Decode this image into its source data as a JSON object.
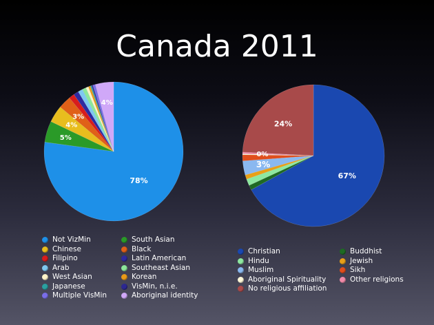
{
  "slide": {
    "title": "Canada 2011"
  },
  "chart_data": [
    {
      "type": "pie",
      "title": "",
      "slices": [
        {
          "label": "Not VizMin",
          "value": 78,
          "color": "#1e90e8",
          "text": "78%"
        },
        {
          "label": "South Asian",
          "value": 5,
          "color": "#2a9a28",
          "text": "5%"
        },
        {
          "label": "Chinese",
          "value": 4,
          "color": "#e8bd1e",
          "text": "4%"
        },
        {
          "label": "Black",
          "value": 3,
          "color": "#e06018",
          "text": "3%"
        },
        {
          "label": "Filipino",
          "value": 1.3,
          "color": "#d81c1c",
          "text": ""
        },
        {
          "label": "Latin American",
          "value": 1.2,
          "color": "#2e2aa0",
          "text": ""
        },
        {
          "label": "Arab",
          "value": 1.1,
          "color": "#7ec8f0",
          "text": ""
        },
        {
          "label": "Southeast Asian",
          "value": 0.9,
          "color": "#8ce89a",
          "text": ""
        },
        {
          "label": "West Asian",
          "value": 0.6,
          "color": "#fff4c8",
          "text": ""
        },
        {
          "label": "Korean",
          "value": 0.5,
          "color": "#e89a18",
          "text": ""
        },
        {
          "label": "Japanese",
          "value": 0.3,
          "color": "#2aa0a0",
          "text": ""
        },
        {
          "label": "VisMin, n.i.e.",
          "value": 0.3,
          "color": "#2c2890",
          "text": ""
        },
        {
          "label": "Multiple VisMin",
          "value": 0.6,
          "color": "#7a6ee8",
          "text": ""
        },
        {
          "label": "Aboriginal identity",
          "value": 4.3,
          "color": "#d0a8f8",
          "text": "4%"
        }
      ]
    },
    {
      "type": "pie",
      "title": "",
      "slices": [
        {
          "label": "Christian",
          "value": 67,
          "color": "#1a48b0",
          "text": "67%"
        },
        {
          "label": "Buddhist",
          "value": 1.1,
          "color": "#1e6a24",
          "text": ""
        },
        {
          "label": "Hindu",
          "value": 1.5,
          "color": "#8ee8a0",
          "text": ""
        },
        {
          "label": "Jewish",
          "value": 1.0,
          "color": "#e8a018",
          "text": ""
        },
        {
          "label": "Muslim",
          "value": 3.2,
          "color": "#8ab8f0",
          "text": "3%"
        },
        {
          "label": "Sikh",
          "value": 1.4,
          "color": "#e04e1c",
          "text": ""
        },
        {
          "label": "Aboriginal Spirituality",
          "value": 0.2,
          "color": "#fff8d8",
          "text": ""
        },
        {
          "label": "Other religions",
          "value": 0.4,
          "color": "#f08aa8",
          "text": "0%"
        },
        {
          "label": "No religious affiliation",
          "value": 24.2,
          "color": "#a84a4a",
          "text": "24%"
        }
      ]
    }
  ],
  "legends": [
    {
      "columns": [
        [
          "Not VizMin",
          "Chinese",
          "Filipino",
          "Arab",
          "West Asian",
          "Japanese",
          "Multiple VisMin"
        ],
        [
          "South Asian",
          "Black",
          "Latin American",
          "Southeast Asian",
          "Korean",
          "VisMin, n.i.e.",
          "Aboriginal identity"
        ]
      ]
    },
    {
      "columns": [
        [
          "Christian",
          "Hindu",
          "Muslim",
          "Aboriginal Spirituality",
          "No religious affiliation"
        ],
        [
          "Buddhist",
          "Jewish",
          "Sikh",
          "Other religions"
        ]
      ]
    }
  ]
}
